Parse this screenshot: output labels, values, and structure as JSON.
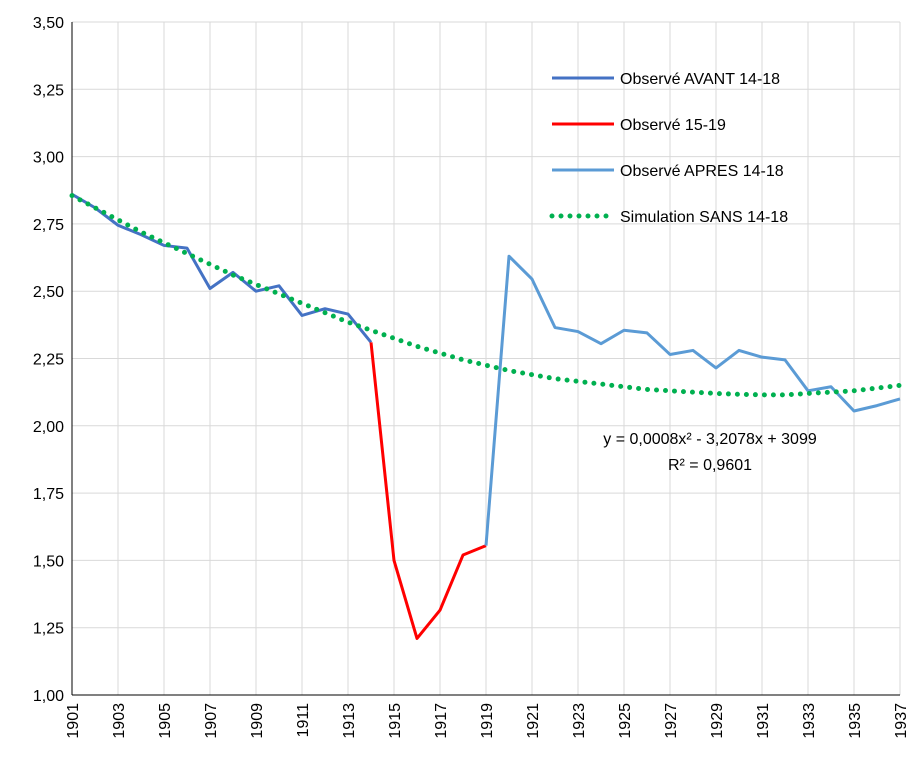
{
  "chart_data": {
    "type": "line",
    "xlim": [
      1901,
      1937
    ],
    "xticks": [
      1901,
      1903,
      1905,
      1907,
      1909,
      1911,
      1913,
      1915,
      1917,
      1919,
      1921,
      1923,
      1925,
      1927,
      1929,
      1931,
      1933,
      1935,
      1937
    ],
    "ylim": [
      1,
      3.5
    ],
    "yticks": [
      {
        "value": 1,
        "label": "1,00"
      },
      {
        "value": 1.25,
        "label": "1,25"
      },
      {
        "value": 1.5,
        "label": "1,50"
      },
      {
        "value": 1.75,
        "label": "1,75"
      },
      {
        "value": 2,
        "label": "2,00"
      },
      {
        "value": 2.25,
        "label": "2,25"
      },
      {
        "value": 2.5,
        "label": "2,50"
      },
      {
        "value": 2.75,
        "label": "2,75"
      },
      {
        "value": 3,
        "label": "3,00"
      },
      {
        "value": 3.25,
        "label": "3,25"
      },
      {
        "value": 3.5,
        "label": "3,50"
      }
    ],
    "grid": true,
    "legend": "upper right",
    "annotations": [
      "y = 0,0008x² - 3,2078x + 3099",
      "R² = 0,9601"
    ],
    "series": [
      {
        "name": "Observé AVANT 14-18",
        "color": "#4472c4",
        "style": "solid",
        "x": [
          1901,
          1902,
          1903,
          1904,
          1905,
          1906,
          1907,
          1908,
          1909,
          1910,
          1911,
          1912,
          1913,
          1914
        ],
        "values": [
          2.86,
          2.81,
          2.745,
          2.71,
          2.67,
          2.66,
          2.51,
          2.57,
          2.5,
          2.52,
          2.41,
          2.435,
          2.415,
          2.31
        ]
      },
      {
        "name": "Observé 15-19",
        "color": "#ff0000",
        "style": "solid",
        "x": [
          1914,
          1915,
          1916,
          1917,
          1918,
          1919
        ],
        "values": [
          2.31,
          1.5,
          1.21,
          1.315,
          1.52,
          1.555
        ]
      },
      {
        "name": "Observé APRES 14-18",
        "color": "#5b9bd5",
        "style": "solid",
        "x": [
          1919,
          1920,
          1921,
          1922,
          1923,
          1924,
          1925,
          1926,
          1927,
          1928,
          1929,
          1930,
          1931,
          1932,
          1933,
          1934,
          1935,
          1936,
          1937
        ],
        "values": [
          1.555,
          2.63,
          2.545,
          2.365,
          2.35,
          2.305,
          2.355,
          2.345,
          2.265,
          2.28,
          2.215,
          2.28,
          2.255,
          2.245,
          2.13,
          2.145,
          2.055,
          2.075,
          2.1
        ]
      },
      {
        "name": "Simulation SANS 14-18",
        "color": "#00b050",
        "style": "dotted",
        "x": [
          1901,
          1902,
          1903,
          1904,
          1905,
          1906,
          1907,
          1908,
          1909,
          1910,
          1911,
          1912,
          1913,
          1914,
          1915,
          1916,
          1917,
          1918,
          1919,
          1920,
          1921,
          1922,
          1923,
          1924,
          1925,
          1926,
          1927,
          1928,
          1929,
          1930,
          1931,
          1932,
          1933,
          1934,
          1935,
          1936,
          1937
        ],
        "values": [
          2.855,
          2.81,
          2.765,
          2.72,
          2.68,
          2.64,
          2.6,
          2.56,
          2.525,
          2.49,
          2.455,
          2.42,
          2.385,
          2.355,
          2.325,
          2.295,
          2.27,
          2.245,
          2.225,
          2.205,
          2.19,
          2.175,
          2.165,
          2.155,
          2.145,
          2.135,
          2.13,
          2.125,
          2.12,
          2.117,
          2.115,
          2.115,
          2.12,
          2.125,
          2.13,
          2.14,
          2.15
        ]
      }
    ]
  }
}
